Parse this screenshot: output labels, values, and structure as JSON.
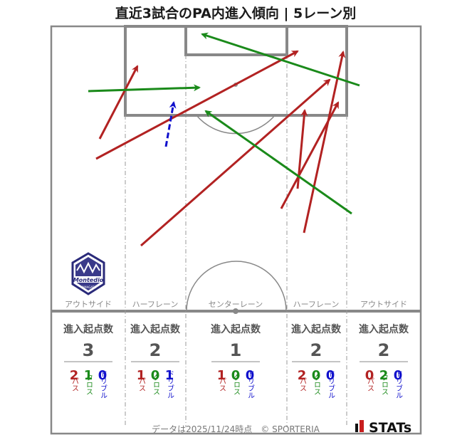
{
  "title": "直近3試合のPA内進入傾向 | 5レーン別",
  "colors": {
    "pass": "#b22222",
    "cross": "#1a8a1a",
    "dribble": "#1010cc"
  },
  "lanes": [
    {
      "label": "アウトサイド",
      "header": "進入起点数",
      "total": "3",
      "pass": "2",
      "cross": "1",
      "dribble": "0"
    },
    {
      "label": "ハーフレーン",
      "header": "進入起点数",
      "total": "2",
      "pass": "1",
      "cross": "0",
      "dribble": "1"
    },
    {
      "label": "センターレーン",
      "header": "進入起点数",
      "total": "1",
      "pass": "1",
      "cross": "0",
      "dribble": "0"
    },
    {
      "label": "ハーフレーン",
      "header": "進入起点数",
      "total": "2",
      "pass": "2",
      "cross": "0",
      "dribble": "0"
    },
    {
      "label": "アウトサイド",
      "header": "進入起点数",
      "total": "2",
      "pass": "0",
      "cross": "2",
      "dribble": "0"
    }
  ],
  "type_labels": {
    "pass": "パス",
    "cross": "クロス",
    "dribble": "ドリブル"
  },
  "chart_data": {
    "type": "pitch-arrows",
    "arrows": [
      {
        "kind": "pass",
        "from": [
          140,
          195
        ],
        "to": [
          193,
          93
        ]
      },
      {
        "kind": "pass",
        "from": [
          135,
          223
        ],
        "to": [
          418,
          72
        ]
      },
      {
        "kind": "pass",
        "from": [
          198,
          345
        ],
        "to": [
          463,
          112
        ]
      },
      {
        "kind": "pass",
        "from": [
          418,
          265
        ],
        "to": [
          428,
          155
        ]
      },
      {
        "kind": "pass",
        "from": [
          395,
          293
        ],
        "to": [
          475,
          144
        ]
      },
      {
        "kind": "pass",
        "from": [
          427,
          327
        ],
        "to": [
          482,
          73
        ]
      },
      {
        "kind": "cross",
        "from": [
          124,
          128
        ],
        "to": [
          280,
          123
        ]
      },
      {
        "kind": "cross",
        "from": [
          505,
          120
        ],
        "to": [
          284,
          48
        ]
      },
      {
        "kind": "cross",
        "from": [
          494,
          300
        ],
        "to": [
          289,
          156
        ]
      },
      {
        "kind": "dribble",
        "from": [
          233,
          206
        ],
        "to": [
          244,
          144
        ]
      }
    ]
  },
  "logo_text": "Montedio",
  "logo_sub": "YAMAGATA",
  "footer": "データは2025/11/24時点　© SPORTERIA",
  "brand": "STATs"
}
